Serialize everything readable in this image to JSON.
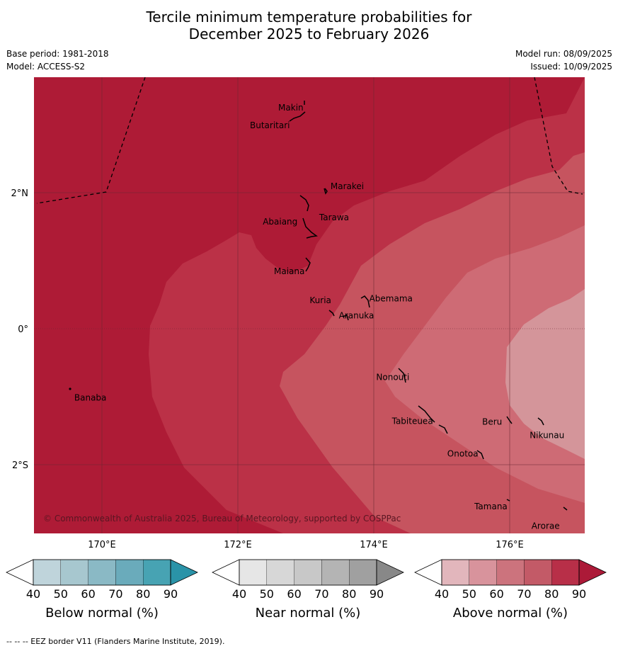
{
  "title": {
    "line1": "Tercile minimum temperature probabilities for",
    "line2": "December 2025 to February 2026"
  },
  "meta": {
    "base_period": "Base period: 1981-2018",
    "model": "Model: ACCESS-S2",
    "model_run": "Model run: 08/09/2025",
    "issued": "Issued: 10/09/2025"
  },
  "map": {
    "region": "Kiribati (Gilbert Islands)",
    "lon_range": [
      169,
      177.1
    ],
    "lat_range": [
      -3.0,
      3.3
    ],
    "lon_ticks": [
      {
        "value": 170,
        "label": "170°E"
      },
      {
        "value": 172,
        "label": "172°E"
      },
      {
        "value": 174,
        "label": "174°E"
      },
      {
        "value": 176,
        "label": "176°E"
      }
    ],
    "lat_ticks": [
      {
        "value": 2,
        "label": "2°N"
      },
      {
        "value": 0,
        "label": "0°"
      },
      {
        "value": -2,
        "label": "2°S"
      }
    ],
    "shading_category": "Above normal",
    "shading_levels_percent": [
      90,
      80,
      70,
      60,
      50
    ],
    "places": [
      {
        "name": "Makin",
        "lon": 172.99,
        "lat": 3.29
      },
      {
        "name": "Butaritari",
        "lon": 172.75,
        "lat": 3.05
      },
      {
        "name": "Marakei",
        "lon": 173.28,
        "lat": 2.01
      },
      {
        "name": "Abaiang",
        "lon": 172.95,
        "lat": 1.8
      },
      {
        "name": "Tarawa",
        "lon": 173.03,
        "lat": 1.45
      },
      {
        "name": "Maiana",
        "lon": 173.0,
        "lat": 0.95
      },
      {
        "name": "Abemama",
        "lon": 173.85,
        "lat": 0.38
      },
      {
        "name": "Kuria",
        "lon": 173.4,
        "lat": 0.23
      },
      {
        "name": "Aranuka",
        "lon": 173.6,
        "lat": 0.17
      },
      {
        "name": "Banaba",
        "lon": 169.53,
        "lat": -0.87
      },
      {
        "name": "Nonouti",
        "lon": 174.4,
        "lat": -0.65
      },
      {
        "name": "Tabiteuea",
        "lon": 174.85,
        "lat": -1.35
      },
      {
        "name": "Beru",
        "lon": 175.97,
        "lat": -1.32
      },
      {
        "name": "Nikunau",
        "lon": 176.45,
        "lat": -1.36
      },
      {
        "name": "Onotoa",
        "lon": 175.55,
        "lat": -1.85
      },
      {
        "name": "Tamana",
        "lon": 175.98,
        "lat": -2.5
      },
      {
        "name": "Arorae",
        "lon": 176.82,
        "lat": -2.64
      }
    ],
    "copyright": "© Commonwealth of Australia 2025, Bureau of Meteorology, supported by COSPPac"
  },
  "colorbars": [
    {
      "title": "Below normal (%)",
      "ticks": [
        "40",
        "50",
        "60",
        "70",
        "80",
        "90"
      ],
      "colors": [
        "#ffffff",
        "#bfd4db",
        "#a7c7cf",
        "#8ab9c5",
        "#6aabbb",
        "#47a3b3",
        "#2a93a8"
      ]
    },
    {
      "title": "Near normal (%)",
      "ticks": [
        "40",
        "50",
        "60",
        "70",
        "80",
        "90"
      ],
      "colors": [
        "#ffffff",
        "#e6e6e6",
        "#d7d7d7",
        "#c8c8c8",
        "#b4b4b4",
        "#a0a0a0",
        "#888888"
      ]
    },
    {
      "title": "Above normal (%)",
      "ticks": [
        "40",
        "50",
        "60",
        "70",
        "80",
        "90"
      ],
      "colors": [
        "#ffffff",
        "#e2b6bc",
        "#d8939c",
        "#cc737d",
        "#c35a67",
        "#b82f48",
        "#ac1a38"
      ]
    }
  ],
  "colors": {
    "above_90": "#ae1b36",
    "above_80": "#bb3147",
    "above_70": "#c6545f",
    "above_60": "#ce6b75",
    "above_50": "#d4959a"
  },
  "footnote": "--  --  -- EEZ border V11 (Flanders Marine Institute, 2019)."
}
